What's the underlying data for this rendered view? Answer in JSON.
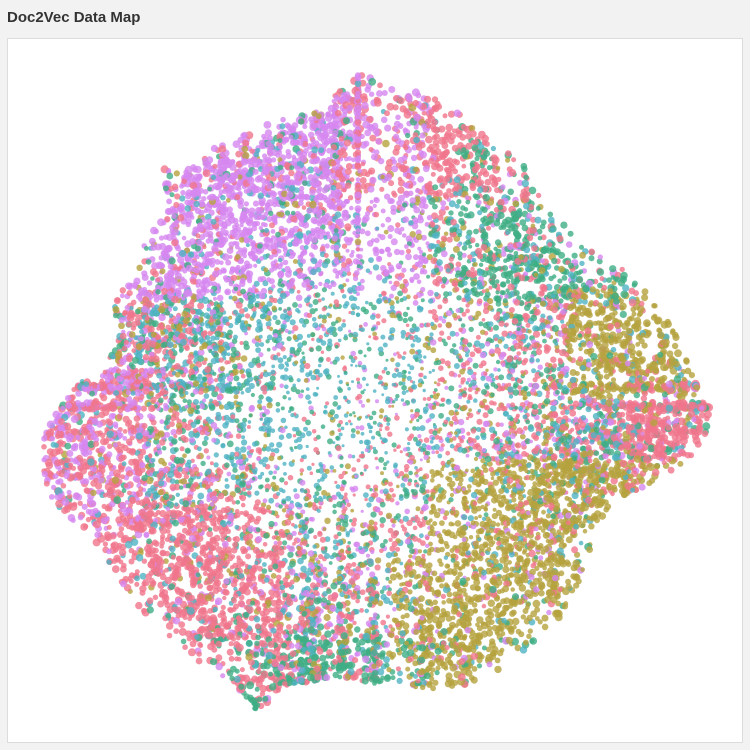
{
  "panel": {
    "title": "Doc2Vec Data Map"
  },
  "colors": {
    "background": "#f2f2f2",
    "plot_background": "#ffffff",
    "border": "#dcdcdc",
    "series": [
      "#d687f0",
      "#f0758c",
      "#4fb3c3",
      "#3fae84",
      "#b5a33e"
    ]
  },
  "chart_data": {
    "type": "scatter",
    "title": "Doc2Vec Data Map",
    "xlabel": "",
    "ylabel": "",
    "axes_visible": false,
    "grid": false,
    "legend": "none",
    "point_count_estimate": 12000,
    "marker_opacity": 0.8,
    "series": [
      {
        "color": "#d687f0"
      },
      {
        "color": "#f0758c"
      },
      {
        "color": "#4fb3c3"
      },
      {
        "color": "#3fae84"
      },
      {
        "color": "#b5a33e"
      }
    ]
  }
}
